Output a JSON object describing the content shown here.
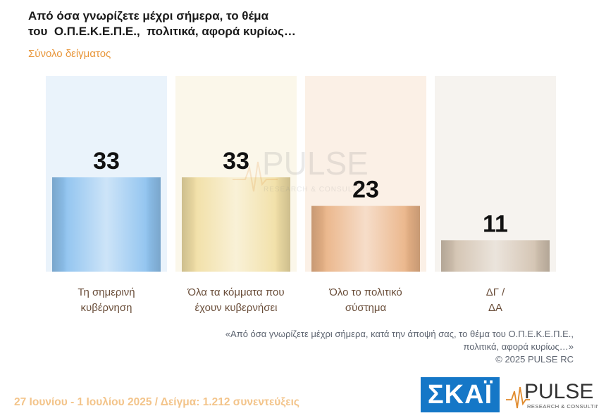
{
  "header": {
    "title_line1": "Από όσα γνωρίζετε μέχρι σήμερα, το θέμα",
    "title_line2": "του  Ο.Π.Ε.Κ.Ε.Π.Ε.,  πολιτικά, αφορά κυρίως…",
    "subtitle": "Σύνολο δείγματος"
  },
  "chart_data": {
    "type": "bar",
    "categories": [
      "Τη σημερινή κυβέρνηση",
      "Όλα τα κόμματα που έχουν κυβερνήσει",
      "Όλο το πολιτικό σύστημα",
      "ΔΓ / ΔΑ"
    ],
    "category_lines": [
      [
        "Τη σημερινή",
        "κυβέρνηση"
      ],
      [
        "Όλα τα κόμματα που",
        "έχουν κυβερνήσει"
      ],
      [
        "Όλο το πολιτικό",
        "σύστημα"
      ],
      [
        "ΔΓ /",
        "ΔΑ"
      ]
    ],
    "values": [
      33,
      33,
      23,
      11
    ],
    "ylim": [
      0,
      60
    ],
    "grid": false,
    "colors": [
      "#8fc3ef",
      "#f1dfa6",
      "#eab488",
      "#d3c3b1"
    ],
    "panel_colors": [
      "#eaf3fb",
      "#fbf7ea",
      "#fbf0e6",
      "#f6f3ef"
    ]
  },
  "watermark": {
    "brand": "PULSE",
    "tagline": "RESEARCH & CONSULTING"
  },
  "quote": {
    "line1": "«Από όσα γνωρίζετε μέχρι σήμερα, κατά την άποψή σας, το θέμα του Ο.Π.Ε.Κ.Ε.Π.Ε.,",
    "line2": "πολιτικά, αφορά κυρίως…»",
    "line3": "©  2025  PULSE RC"
  },
  "footer": {
    "survey_info": "27 Ιουνίου - 1 Ιουλίου 2025  /  Δείγμα:  1.212 συνεντεύξεις",
    "skai_logo": "ΣΚΑΪ",
    "pulse_logo_text": "PULSE",
    "pulse_logo_sub": "RESEARCH & CONSULTING"
  }
}
